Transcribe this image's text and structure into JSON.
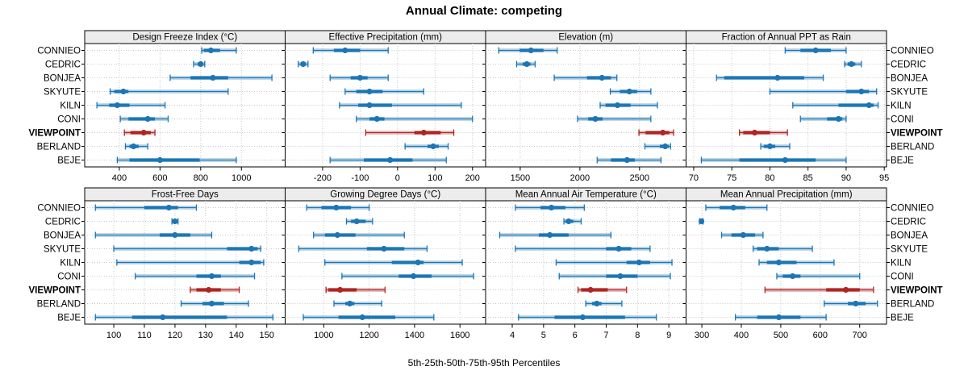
{
  "title": "Annual Climate: competing",
  "caption": "5th-25th-50th-75th-95th Percentiles",
  "colors": {
    "series_blue": "#1C76B4",
    "highlight_red": "#B02424",
    "strip_bg": "#ECECEC",
    "grid": "#C9C9C9",
    "border": "#000000"
  },
  "categories": [
    "CONNIEO",
    "CEDRIC",
    "BONJEA",
    "SKYUTE",
    "KILN",
    "CONI",
    "VIEWPOINT",
    "BERLAND",
    "BEJE"
  ],
  "highlight_category": "VIEWPOINT",
  "percentile_levels": [
    5,
    25,
    50,
    75,
    95
  ],
  "chart_data": [
    {
      "type": "dotplot",
      "row": 0,
      "col": 0,
      "panel_title": "Design Freeze Index (°C)",
      "xlim": [
        230,
        1215
      ],
      "ticks": [
        400,
        600,
        800,
        1000
      ],
      "series": [
        {
          "name": "CONNIEO",
          "values": [
            805,
            815,
            850,
            895,
            975
          ]
        },
        {
          "name": "CEDRIC",
          "values": [
            765,
            785,
            800,
            810,
            820
          ]
        },
        {
          "name": "BONJEA",
          "values": [
            650,
            750,
            860,
            935,
            1150
          ]
        },
        {
          "name": "SKYUTE",
          "values": [
            355,
            375,
            420,
            445,
            935
          ]
        },
        {
          "name": "KILN",
          "values": [
            290,
            350,
            390,
            450,
            625
          ]
        },
        {
          "name": "CONI",
          "values": [
            405,
            445,
            540,
            575,
            640
          ]
        },
        {
          "name": "VIEWPOINT",
          "values": [
            425,
            455,
            520,
            555,
            575
          ]
        },
        {
          "name": "BERLAND",
          "values": [
            430,
            450,
            470,
            495,
            540
          ]
        },
        {
          "name": "BEJE",
          "values": [
            390,
            450,
            600,
            795,
            975
          ]
        }
      ]
    },
    {
      "type": "dotplot",
      "row": 0,
      "col": 1,
      "panel_title": "Effective Precipitation (mm)",
      "xlim": [
        -300,
        235
      ],
      "ticks": [
        -200,
        -100,
        0,
        100,
        200
      ],
      "series": [
        {
          "name": "CONNIEO",
          "values": [
            -225,
            -170,
            -140,
            -100,
            -25
          ]
        },
        {
          "name": "CEDRIC",
          "values": [
            -265,
            -258,
            -252,
            -245,
            -239
          ]
        },
        {
          "name": "BONJEA",
          "values": [
            -180,
            -125,
            -100,
            -80,
            -25
          ]
        },
        {
          "name": "SKYUTE",
          "values": [
            -140,
            -110,
            -75,
            -40,
            70
          ]
        },
        {
          "name": "KILN",
          "values": [
            -155,
            -105,
            -75,
            -15,
            170
          ]
        },
        {
          "name": "CONI",
          "values": [
            -110,
            -75,
            -55,
            -35,
            200
          ]
        },
        {
          "name": "VIEWPOINT",
          "values": [
            -85,
            45,
            70,
            115,
            150
          ]
        },
        {
          "name": "BERLAND",
          "values": [
            20,
            80,
            95,
            110,
            135
          ]
        },
        {
          "name": "BEJE",
          "values": [
            -180,
            -90,
            -20,
            40,
            130
          ]
        }
      ]
    },
    {
      "type": "dotplot",
      "row": 0,
      "col": 2,
      "panel_title": "Elevation (m)",
      "xlim": [
        1210,
        2890
      ],
      "ticks": [
        1500,
        2000,
        2500
      ],
      "series": [
        {
          "name": "CONNIEO",
          "values": [
            1320,
            1495,
            1590,
            1695,
            1810
          ]
        },
        {
          "name": "CEDRIC",
          "values": [
            1470,
            1520,
            1555,
            1585,
            1625
          ]
        },
        {
          "name": "BONJEA",
          "values": [
            1785,
            2060,
            2185,
            2260,
            2310
          ]
        },
        {
          "name": "SKYUTE",
          "values": [
            2255,
            2335,
            2415,
            2480,
            2595
          ]
        },
        {
          "name": "KILN",
          "values": [
            2170,
            2215,
            2315,
            2425,
            2650
          ]
        },
        {
          "name": "CONI",
          "values": [
            1980,
            2070,
            2130,
            2190,
            2595
          ]
        },
        {
          "name": "VIEWPOINT",
          "values": [
            2495,
            2550,
            2695,
            2750,
            2785
          ]
        },
        {
          "name": "BERLAND",
          "values": [
            2545,
            2670,
            2715,
            2745,
            2760
          ]
        },
        {
          "name": "BEJE",
          "values": [
            2145,
            2260,
            2395,
            2460,
            2680
          ]
        }
      ]
    },
    {
      "type": "dotplot",
      "row": 0,
      "col": 3,
      "panel_title": "Fraction of Annual PPT as Rain",
      "xlim": [
        69,
        95.3
      ],
      "ticks": [
        70,
        75,
        80,
        85,
        90,
        95
      ],
      "series": [
        {
          "name": "CONNIEO",
          "values": [
            82,
            84,
            86,
            88,
            90
          ]
        },
        {
          "name": "CEDRIC",
          "values": [
            89.8,
            90.2,
            90.7,
            91.2,
            92
          ]
        },
        {
          "name": "BONJEA",
          "values": [
            73,
            74,
            81,
            84.5,
            87
          ]
        },
        {
          "name": "SKYUTE",
          "values": [
            80,
            90,
            92,
            93,
            94
          ]
        },
        {
          "name": "KILN",
          "values": [
            83,
            89,
            93,
            93.6,
            94.2
          ]
        },
        {
          "name": "CONI",
          "values": [
            84,
            87.5,
            89,
            89.5,
            90
          ]
        },
        {
          "name": "VIEWPOINT",
          "values": [
            76,
            76.5,
            78,
            80,
            82.3
          ]
        },
        {
          "name": "BERLAND",
          "values": [
            78.8,
            79.2,
            80,
            80.7,
            82.6
          ]
        },
        {
          "name": "BEJE",
          "values": [
            71,
            76,
            82,
            86,
            90
          ]
        }
      ]
    },
    {
      "type": "dotplot",
      "row": 1,
      "col": 0,
      "panel_title": "Frost-Free Days",
      "xlim": [
        90.5,
        156
      ],
      "ticks": [
        100,
        110,
        120,
        130,
        140,
        150
      ],
      "series": [
        {
          "name": "CONNIEO",
          "values": [
            94,
            110,
            118,
            121,
            127
          ]
        },
        {
          "name": "CEDRIC",
          "values": [
            119,
            119.5,
            120,
            120.5,
            121
          ]
        },
        {
          "name": "BONJEA",
          "values": [
            94,
            115,
            120,
            125,
            132
          ]
        },
        {
          "name": "SKYUTE",
          "values": [
            100,
            137,
            145,
            147,
            148
          ]
        },
        {
          "name": "KILN",
          "values": [
            101,
            141,
            145,
            148,
            149
          ]
        },
        {
          "name": "CONI",
          "values": [
            107,
            127,
            132,
            135,
            146
          ]
        },
        {
          "name": "VIEWPOINT",
          "values": [
            125,
            127,
            131,
            135,
            141
          ]
        },
        {
          "name": "BERLAND",
          "values": [
            122,
            129,
            132,
            136,
            144
          ]
        },
        {
          "name": "BEJE",
          "values": [
            94,
            106,
            116,
            137,
            152
          ]
        }
      ]
    },
    {
      "type": "dotplot",
      "row": 1,
      "col": 1,
      "panel_title": "Growing Degree Days (°C)",
      "xlim": [
        830,
        1713
      ],
      "ticks": [
        1000,
        1200,
        1400,
        1600
      ],
      "series": [
        {
          "name": "CONNIEO",
          "values": [
            925,
            990,
            1055,
            1120,
            1200
          ]
        },
        {
          "name": "CEDRIC",
          "values": [
            1100,
            1120,
            1145,
            1185,
            1215
          ]
        },
        {
          "name": "BONJEA",
          "values": [
            955,
            1005,
            1060,
            1140,
            1355
          ]
        },
        {
          "name": "SKYUTE",
          "values": [
            890,
            1190,
            1265,
            1355,
            1455
          ]
        },
        {
          "name": "KILN",
          "values": [
            1005,
            1300,
            1415,
            1440,
            1610
          ]
        },
        {
          "name": "CONI",
          "values": [
            1080,
            1330,
            1395,
            1475,
            1660
          ]
        },
        {
          "name": "VIEWPOINT",
          "values": [
            1010,
            1020,
            1072,
            1145,
            1270
          ]
        },
        {
          "name": "BERLAND",
          "values": [
            1045,
            1095,
            1115,
            1135,
            1255
          ]
        },
        {
          "name": "BEJE",
          "values": [
            910,
            1065,
            1170,
            1315,
            1485
          ]
        }
      ]
    },
    {
      "type": "dotplot",
      "row": 1,
      "col": 2,
      "panel_title": "Mean Annual Air Temperature (°C)",
      "xlim": [
        3.15,
        9.55
      ],
      "ticks": [
        4,
        5,
        6,
        7,
        8,
        9
      ],
      "series": [
        {
          "name": "CONNIEO",
          "values": [
            4.1,
            4.9,
            5.25,
            5.7,
            6.3
          ]
        },
        {
          "name": "CEDRIC",
          "values": [
            5.65,
            5.7,
            5.8,
            5.95,
            6.2
          ]
        },
        {
          "name": "BONJEA",
          "values": [
            3.6,
            4.85,
            5.2,
            5.8,
            7.15
          ]
        },
        {
          "name": "SKYUTE",
          "values": [
            4.1,
            7.0,
            7.4,
            7.8,
            8.4
          ]
        },
        {
          "name": "KILN",
          "values": [
            5.4,
            7.65,
            8.05,
            8.4,
            9.1
          ]
        },
        {
          "name": "CONI",
          "values": [
            5.5,
            7.0,
            7.45,
            8.0,
            9.05
          ]
        },
        {
          "name": "VIEWPOINT",
          "values": [
            6.1,
            6.2,
            6.5,
            7.05,
            7.65
          ]
        },
        {
          "name": "BERLAND",
          "values": [
            6.35,
            6.55,
            6.7,
            6.85,
            7.5
          ]
        },
        {
          "name": "BEJE",
          "values": [
            4.2,
            5.35,
            6.25,
            7.6,
            8.6
          ]
        }
      ]
    },
    {
      "type": "dotplot",
      "row": 1,
      "col": 3,
      "panel_title": "Mean Annual Precipitation (mm)",
      "xlim": [
        260,
        768
      ],
      "ticks": [
        300,
        400,
        500,
        600,
        700
      ],
      "series": [
        {
          "name": "CONNIEO",
          "values": [
            310,
            345,
            380,
            410,
            465
          ]
        },
        {
          "name": "CEDRIC",
          "values": [
            294,
            297,
            299,
            301,
            303
          ]
        },
        {
          "name": "BONJEA",
          "values": [
            350,
            375,
            405,
            435,
            455
          ]
        },
        {
          "name": "SKYUTE",
          "values": [
            430,
            440,
            465,
            495,
            580
          ]
        },
        {
          "name": "KILN",
          "values": [
            445,
            465,
            495,
            540,
            635
          ]
        },
        {
          "name": "CONI",
          "values": [
            490,
            505,
            530,
            550,
            700
          ]
        },
        {
          "name": "VIEWPOINT",
          "values": [
            460,
            615,
            665,
            700,
            735
          ]
        },
        {
          "name": "BERLAND",
          "values": [
            610,
            670,
            690,
            715,
            745
          ]
        },
        {
          "name": "BEJE",
          "values": [
            385,
            440,
            495,
            550,
            615
          ]
        }
      ]
    }
  ]
}
